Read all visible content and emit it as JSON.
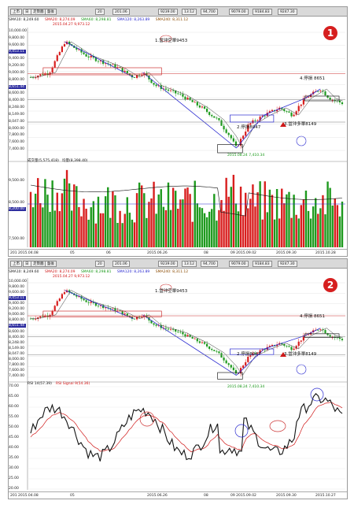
{
  "toolbar": {
    "tab1": "上市",
    "tab2": "日",
    "tab3": "走勢圖",
    "tab4": "盤後",
    "interval": "20",
    "field1": "201.06",
    "field2": "9239.00",
    "field3": "13:12",
    "field4": "94,700",
    "field5": "9079.00",
    "field6": "9184.83",
    "field7": "9247.30"
  },
  "panel1": {
    "info": [
      "SMA10: 8,249.60",
      "SMA20: 8,274.09",
      "SMA60: 8,298.81",
      "SMA120: 8,263.89",
      "SMA240: 8,311.12"
    ],
    "badge": "1",
    "price_axis": [
      "10,000.00",
      "9,800.00",
      "9,600.00",
      "9,453.11",
      "9,400.00",
      "9,200.00",
      "9,000.00",
      "8,800.00",
      "8,651.44",
      "8,600.00",
      "8,400.00",
      "8,248.00",
      "8,149.00",
      "8,047.00",
      "8,000.00",
      "7,800.00",
      "7,600.00",
      "7,400.00"
    ],
    "vol_info": "成交量(5,575,418)",
    "vol_info2": "均量(8,398.40)",
    "vol_axis": [
      "9,500.00",
      "8,500.00",
      "8,200.00",
      "7,500.00"
    ],
    "ann_top": "2015.04.27 9,973.12",
    "ann_low": "2015.08.24 7,410.34",
    "ann1": "1.當沖空單9453",
    "ann2": "2.停損8047",
    "ann3": "3.當沖多單8149",
    "ann4": "4.停損 8651",
    "dates": [
      "201 2015.04.08",
      "05",
      "06",
      "2015.06.26",
      "08",
      "09 2015.09.02",
      "2015.09.30",
      "2015.10.28"
    ]
  },
  "panel2": {
    "info": [
      "SMA10: 8,249.60",
      "SMA20: 8,274.09",
      "SMA60: 8,298.81",
      "SMA120: 8,263.89",
      "SMA240: 8,311.12"
    ],
    "badge": "2",
    "price_axis": [
      "10,000.00",
      "9,800.00",
      "9,600.00",
      "9,453.11",
      "9,400.00",
      "9,200.00",
      "9,000.00",
      "8,800.00",
      "8,651.44",
      "8,600.00",
      "8,400.00",
      "8,248.00",
      "8,149.00",
      "8,047.00",
      "8,000.00",
      "7,800.00",
      "7,600.00",
      "7,400.00"
    ],
    "rsi_info": "RSI 14(57.39)",
    "rsi_info2": "RSI Signal 9(54.36)",
    "rsi_axis": [
      "70.00",
      "65.00",
      "60.00",
      "55.00",
      "50.00",
      "45.00",
      "40.00",
      "35.00",
      "30.00",
      "25.00",
      "20.00"
    ],
    "ann_top": "2015.04.27 9,973.12",
    "ann_low": "2015.08.24 7,410.34",
    "ann1": "1.當沖空單9453",
    "ann2": "2.停損8047",
    "ann3": "3.當沖多單8149",
    "ann4": "4.停損 8651",
    "dates": [
      "201 2015.04.08",
      "05",
      "2015.06.26",
      "08",
      "09 2015.09.02",
      "2015.09.30",
      "2015.10.27"
    ]
  },
  "colors": {
    "up": "#d81e1e",
    "down": "#1e9a1e",
    "trend": "#2a2ad0",
    "rsi": "#111111",
    "signal": "#d01818",
    "badge": "#d61f1f"
  },
  "icons": [
    "dropdown-icon",
    "badge-circle-1",
    "badge-circle-2"
  ]
}
